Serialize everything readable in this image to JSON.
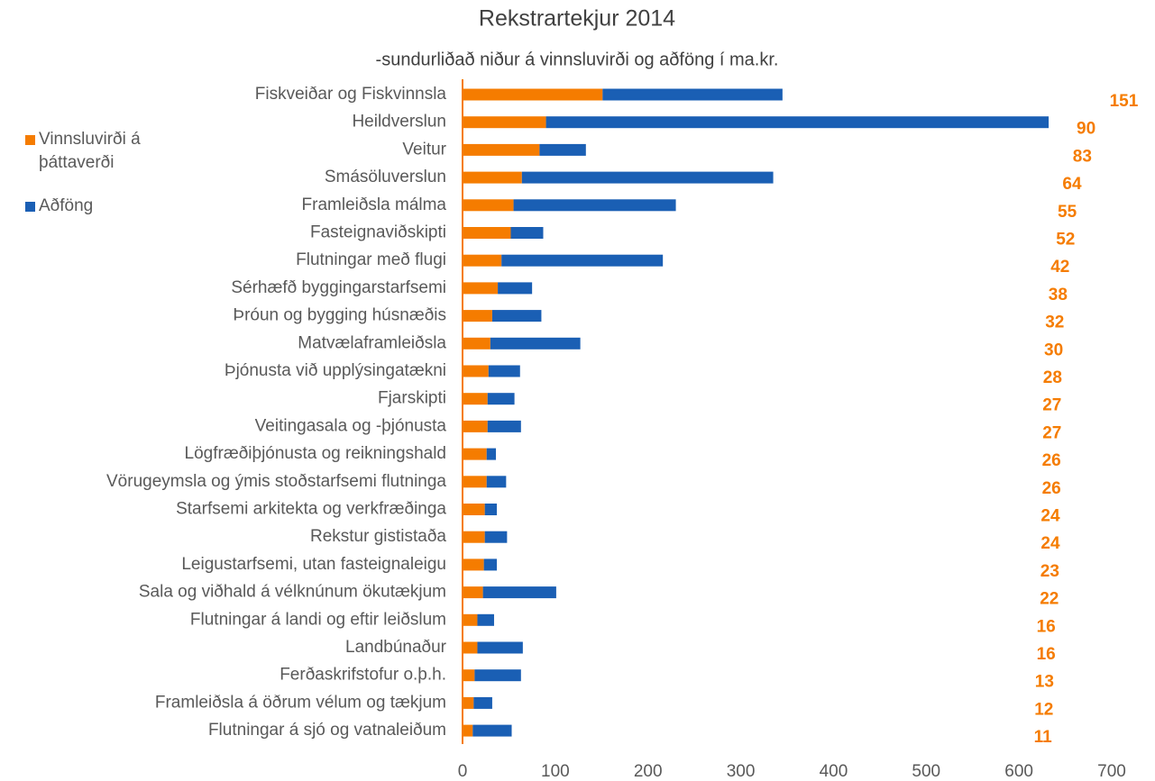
{
  "chart_data": {
    "type": "stacked_barh",
    "title": "Rekstrartekjur 2014",
    "subtitle": "-sundurliðað niður á vinnsluvirði og aðföng í ma.kr.",
    "categories": [
      "Fiskveiðar og Fiskvinnsla",
      "Heildverslun",
      "Veitur",
      "Smásöluverslun",
      "Framleiðsla málma",
      "Fasteignaviðskipti",
      "Flutningar með flugi",
      "Sérhæfð byggingarstarfsemi",
      "Þróun og bygging húsnæðis",
      "Matvælaframleiðsla",
      "Þjónusta við upplýsingatækni",
      "Fjarskipti",
      "Veitingasala og -þjónusta",
      "Lögfræðiþjónusta og reikningshald",
      "Vörugeymsla og ýmis stoðstarfsemi  flutninga",
      "Starfsemi arkitekta og verkfræðinga",
      "Rekstur gististaða",
      "Leigustarfsemi, utan fasteignaleigu",
      "Sala og viðhald á vélknúnum ökutækjum",
      "Flutningar á landi og eftir leiðslum",
      "Landbúnaður",
      "Ferðaskrifstofur o.þ.h.",
      "Framleiðsla á öðrum vélum og tækjum",
      "Flutningar á sjó og vatnaleiðum"
    ],
    "series": [
      {
        "name": "Vinnsluvirði á þáttaverði",
        "color": "#f57c00",
        "values": [
          151,
          90,
          83,
          64,
          55,
          52,
          42,
          38,
          32,
          30,
          28,
          27,
          27,
          26,
          26,
          24,
          24,
          23,
          22,
          16,
          16,
          13,
          12,
          11
        ]
      },
      {
        "name": "Aðföng",
        "color": "#1a5fb4",
        "values": [
          194,
          542,
          50,
          271,
          175,
          35,
          174,
          37,
          53,
          97,
          34,
          29,
          36,
          10,
          21,
          13,
          24,
          14,
          79,
          18,
          49,
          50,
          20,
          42
        ]
      }
    ],
    "xlim": [
      0,
      700
    ],
    "xticks": [
      0,
      100,
      200,
      300,
      400,
      500,
      600,
      700
    ]
  }
}
